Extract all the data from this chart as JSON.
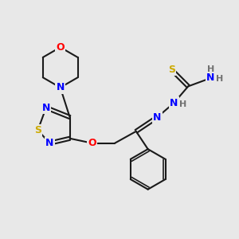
{
  "bg_color": "#e8e8e8",
  "bond_color": "#1a1a1a",
  "atom_colors": {
    "N": "#0000ff",
    "O": "#ff0000",
    "S": "#ccaa00",
    "C": "#1a1a1a",
    "H": "#707070"
  },
  "font_size": 9,
  "bond_width": 1.5
}
